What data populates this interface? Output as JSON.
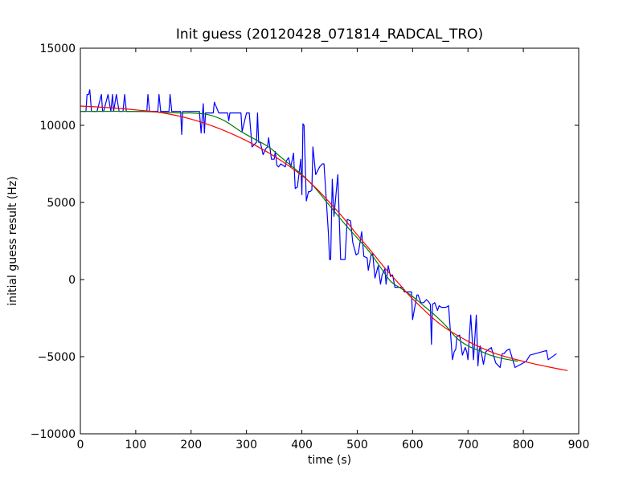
{
  "chart_data": {
    "type": "line",
    "title": "Init guess (20120428_071814_RADCAL_TRO)",
    "xlabel": "time (s)",
    "ylabel": "initial guess result (Hz)",
    "xlim": [
      0,
      900
    ],
    "ylim": [
      -10000,
      15000
    ],
    "xticks": [
      0,
      100,
      200,
      300,
      400,
      500,
      600,
      700,
      800,
      900
    ],
    "yticks": [
      -10000,
      -5000,
      0,
      5000,
      10000,
      15000
    ],
    "xtick_labels": [
      "0",
      "100",
      "200",
      "300",
      "400",
      "500",
      "600",
      "700",
      "800",
      "900"
    ],
    "ytick_labels": [
      "−10000",
      "−5000",
      "0",
      "5000",
      "10000",
      "15000"
    ],
    "grid": false,
    "legend": "none",
    "series": [
      {
        "color": "#0000ff",
        "x": [
          2,
          10,
          12,
          15,
          17,
          20,
          25,
          30,
          38,
          40,
          42,
          50,
          55,
          58,
          60,
          65,
          70,
          77,
          80,
          83,
          90,
          100,
          110,
          120,
          122,
          125,
          130,
          140,
          142,
          145,
          155,
          160,
          162,
          165,
          170,
          175,
          181,
          183,
          185,
          190,
          200,
          210,
          215,
          218,
          222,
          224,
          226,
          230,
          238,
          240,
          242,
          250,
          258,
          262,
          266,
          268,
          270,
          280,
          288,
          290,
          292,
          300,
          302,
          305,
          310,
          318,
          320,
          322,
          325,
          330,
          335,
          338,
          340,
          345,
          350,
          352,
          355,
          358,
          362,
          370,
          372,
          376,
          380,
          385,
          388,
          392,
          398,
          400,
          402,
          404,
          408,
          412,
          415,
          418,
          420,
          425,
          432,
          437,
          440,
          448,
          450,
          452,
          455,
          458,
          465,
          470,
          472,
          478,
          482,
          488,
          492,
          498,
          502,
          508,
          512,
          518,
          520,
          525,
          528,
          532,
          538,
          542,
          545,
          550,
          552,
          556,
          560,
          564,
          568,
          575,
          582,
          585,
          595,
          598,
          600,
          608,
          610,
          615,
          620,
          625,
          628,
          632,
          634,
          636,
          640,
          645,
          648,
          652,
          660,
          665,
          672,
          675,
          678,
          680,
          685,
          690,
          695,
          698,
          700,
          705,
          710,
          715,
          718,
          720,
          722,
          728,
          732,
          738,
          740,
          742,
          750,
          758,
          762,
          765,
          770,
          775,
          785,
          795,
          805,
          812,
          842,
          845,
          860
        ],
        "y": [
          10900,
          10900,
          12000,
          12000,
          12300,
          10900,
          10900,
          10900,
          12000,
          10900,
          10900,
          12000,
          10900,
          12000,
          10900,
          12000,
          10900,
          10900,
          12000,
          10900,
          10900,
          10900,
          10900,
          10900,
          12000,
          10900,
          10900,
          10900,
          12000,
          10900,
          10900,
          10900,
          12000,
          10900,
          10900,
          10900,
          10900,
          9400,
          10900,
          10900,
          10900,
          10900,
          10900,
          9500,
          11400,
          9500,
          10800,
          10800,
          10800,
          10800,
          11500,
          10800,
          10800,
          10800,
          10800,
          10300,
          10800,
          10800,
          10800,
          10800,
          9600,
          10800,
          10800,
          10800,
          8600,
          8900,
          10800,
          8900,
          8900,
          8100,
          8500,
          8600,
          9200,
          7800,
          7800,
          8300,
          7400,
          7300,
          7500,
          7300,
          7700,
          7900,
          7300,
          8200,
          5900,
          6000,
          7800,
          5500,
          10100,
          10000,
          5100,
          5700,
          5700,
          5800,
          8600,
          6800,
          7300,
          7500,
          7500,
          3000,
          1300,
          1300,
          6500,
          4100,
          6800,
          1300,
          1300,
          1300,
          3900,
          3800,
          2400,
          1600,
          1700,
          3100,
          1500,
          1400,
          600,
          1600,
          1700,
          100,
          900,
          -300,
          300,
          700,
          -300,
          900,
          200,
          300,
          -500,
          -500,
          -500,
          -800,
          -800,
          -800,
          -2600,
          -1000,
          -1000,
          -1500,
          -1500,
          -1300,
          -1400,
          -1600,
          -4200,
          -1600,
          -1500,
          -2000,
          -1700,
          -1800,
          -1800,
          -1700,
          -5200,
          -4700,
          -4500,
          -3700,
          -3600,
          -4900,
          -4400,
          -4700,
          -5200,
          -2300,
          -5200,
          -2300,
          -5600,
          -4700,
          -4300,
          -5500,
          -4700,
          -4500,
          -4500,
          -4400,
          -5400,
          -5700,
          -4800,
          -4800,
          -4600,
          -4500,
          -5700,
          -5500,
          -5300,
          -4900,
          -4600,
          -5200,
          -4800
        ],
        "smooth": false
      },
      {
        "color": "#008000",
        "x": [
          0,
          100,
          180,
          200,
          230,
          260,
          290,
          310,
          340,
          360,
          380,
          400,
          420,
          450,
          480,
          500,
          520,
          540,
          560,
          580,
          600,
          620,
          640,
          660,
          680,
          700,
          720,
          740,
          760,
          790
        ],
        "y": [
          10900,
          10900,
          10800,
          10800,
          10700,
          10300,
          9600,
          9200,
          8600,
          8000,
          7400,
          6800,
          6100,
          4800,
          3500,
          2700,
          1900,
          900,
          -100,
          -600,
          -1100,
          -1700,
          -2300,
          -3000,
          -3800,
          -4300,
          -4600,
          -4900,
          -5100,
          -5300
        ],
        "smooth": true
      },
      {
        "color": "#ff0000",
        "x": [
          0,
          50,
          100,
          150,
          200,
          250,
          300,
          350,
          400,
          425,
          450,
          475,
          500,
          525,
          550,
          575,
          600,
          650,
          700,
          750,
          800,
          850,
          880
        ],
        "y": [
          11250,
          11150,
          11000,
          10800,
          10400,
          9800,
          9000,
          8000,
          6750,
          5950,
          5000,
          4000,
          2900,
          1850,
          750,
          -250,
          -1250,
          -2900,
          -4000,
          -4800,
          -5300,
          -5700,
          -5900
        ],
        "smooth": true
      }
    ]
  }
}
